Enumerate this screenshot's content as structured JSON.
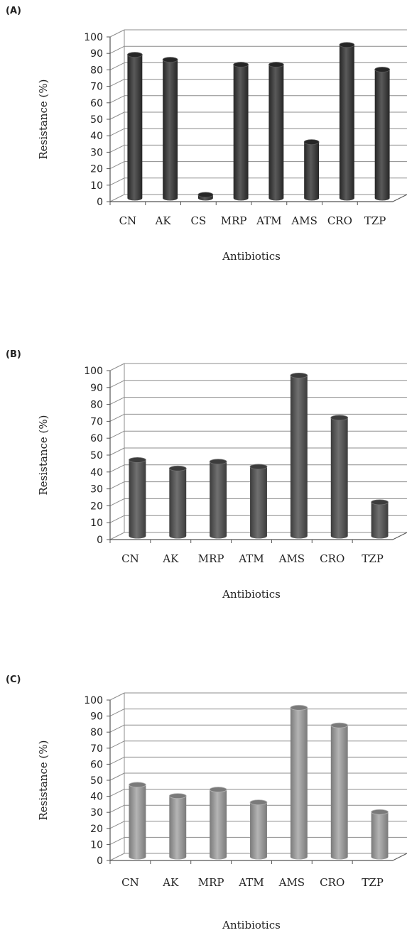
{
  "chart_data": [
    {
      "panel_label": "(A)",
      "type": "bar",
      "categories": [
        "CN",
        "AK",
        "CS",
        "MRP",
        "ATM",
        "AMS",
        "CRO",
        "TZP"
      ],
      "values": [
        87,
        84,
        2,
        81,
        81,
        34,
        93,
        78
      ],
      "xlabel": "Antibiotics",
      "ylabel": "Resistance (%)",
      "ylim": [
        0,
        100
      ],
      "yticks": [
        "0",
        "10",
        "20",
        "30",
        "40",
        "50",
        "60",
        "70",
        "80",
        "90",
        "100"
      ],
      "grid": true,
      "bar_color": "#262626",
      "bar_highlight": "#5a5a5a"
    },
    {
      "panel_label": "(B)",
      "type": "bar",
      "categories": [
        "CN",
        "AK",
        "MRP",
        "ATM",
        "AMS",
        "CRO",
        "TZP"
      ],
      "values": [
        45,
        40,
        44,
        41,
        95,
        70,
        20
      ],
      "xlabel": "Antibiotics",
      "ylabel": "Resistance (%)",
      "ylim": [
        0,
        100
      ],
      "yticks": [
        "0",
        "10",
        "20",
        "30",
        "40",
        "50",
        "60",
        "70",
        "80",
        "90",
        "100"
      ],
      "grid": true,
      "bar_color": "#3c3c3c",
      "bar_highlight": "#707070"
    },
    {
      "panel_label": "(C)",
      "type": "bar",
      "categories": [
        "CN",
        "AK",
        "MRP",
        "ATM",
        "AMS",
        "CRO",
        "TZP"
      ],
      "values": [
        45,
        38,
        42,
        34,
        93,
        82,
        28
      ],
      "xlabel": "Antibiotics",
      "ylabel": "Resistance (%)",
      "ylim": [
        0,
        100
      ],
      "yticks": [
        "0",
        "10",
        "20",
        "30",
        "40",
        "50",
        "60",
        "70",
        "80",
        "90",
        "100"
      ],
      "grid": true,
      "bar_color": "#7a7a7a",
      "bar_highlight": "#b4b4b4"
    }
  ]
}
